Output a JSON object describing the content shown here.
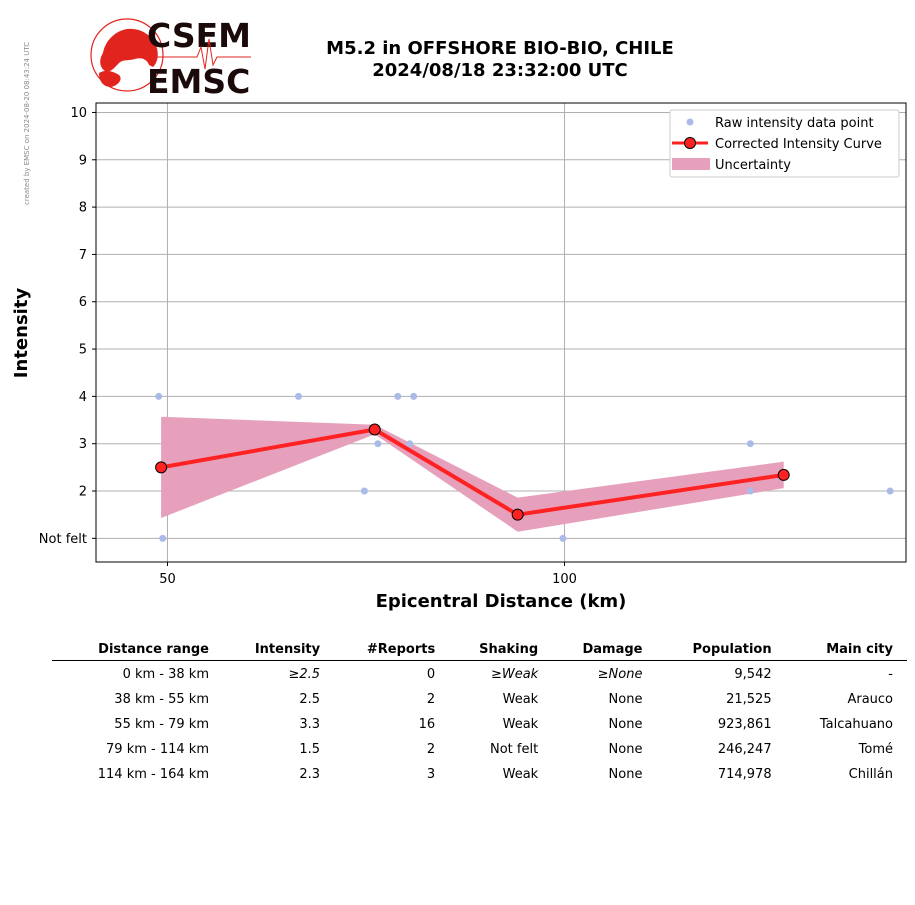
{
  "side_note": "created by EMSC on 2024-08-20 08:43:24 UTC",
  "logo": {
    "top": "CSEM",
    "bottom": "EMSC"
  },
  "title_line1": "M5.2 in OFFSHORE BIO-BIO, CHILE",
  "title_line2": "2024/08/18 23:32:00 UTC",
  "colors": {
    "raw_points": "#aabbe8",
    "curve": "#ff2222",
    "uncertainty": "#e6a0bc",
    "grid": "#b0b0b0",
    "logo_red": "#e2241f"
  },
  "chart_data": {
    "type": "line",
    "title": "M5.2 in OFFSHORE BIO-BIO, CHILE 2024/08/18 23:32:00 UTC",
    "xlabel": "Epicentral Distance (km)",
    "ylabel": "Intensity",
    "xlim": [
      41,
      143
    ],
    "ylim": [
      0.5,
      10.2
    ],
    "xticks": [
      50,
      100
    ],
    "yticks": [
      {
        "value": 1,
        "label": "Not felt"
      },
      {
        "value": 2,
        "label": "2"
      },
      {
        "value": 3,
        "label": "3"
      },
      {
        "value": 4,
        "label": "4"
      },
      {
        "value": 5,
        "label": "5"
      },
      {
        "value": 6,
        "label": "6"
      },
      {
        "value": 7,
        "label": "7"
      },
      {
        "value": 8,
        "label": "8"
      },
      {
        "value": 9,
        "label": "9"
      },
      {
        "value": 10,
        "label": "10"
      }
    ],
    "grid": true,
    "legend_position": "top-right",
    "legend": [
      "Raw intensity data point",
      "Corrected Intensity Curve",
      "Uncertainty"
    ],
    "series": [
      {
        "name": "Raw intensity data point",
        "type": "scatter",
        "points": [
          [
            48.9,
            4
          ],
          [
            49.4,
            1
          ],
          [
            66.5,
            4
          ],
          [
            74.8,
            2
          ],
          [
            76.5,
            3
          ],
          [
            79,
            4
          ],
          [
            80.5,
            3
          ],
          [
            81,
            4
          ],
          [
            99.8,
            1
          ],
          [
            123.4,
            3
          ],
          [
            123.4,
            2
          ],
          [
            141,
            2
          ]
        ]
      },
      {
        "name": "Corrected Intensity Curve",
        "type": "line",
        "points": [
          [
            49.2,
            2.5
          ],
          [
            76.1,
            3.3
          ],
          [
            94.1,
            1.5
          ],
          [
            127.6,
            2.34
          ]
        ]
      },
      {
        "name": "Uncertainty",
        "type": "area",
        "upper": [
          [
            49.2,
            3.57
          ],
          [
            76.1,
            3.4
          ],
          [
            94.1,
            1.86
          ],
          [
            127.6,
            2.62
          ]
        ],
        "lower": [
          [
            49.2,
            1.43
          ],
          [
            76.1,
            3.2
          ],
          [
            94.1,
            1.14
          ],
          [
            127.6,
            2.06
          ]
        ]
      }
    ]
  },
  "table": {
    "headers": [
      "Distance range",
      "Intensity",
      "#Reports",
      "Shaking",
      "Damage",
      "Population",
      "Main city"
    ],
    "rows": [
      {
        "range": "  0 km -   38 km",
        "intensity": "≥2.5",
        "reports": "0",
        "shaking": "≥Weak",
        "damage": "≥None",
        "population": "9,542",
        "city": "-"
      },
      {
        "range": " 38 km -   55 km",
        "intensity": "2.5",
        "reports": "2",
        "shaking": "Weak",
        "damage": "None",
        "population": "21,525",
        "city": "Arauco"
      },
      {
        "range": " 55 km -   79 km",
        "intensity": "3.3",
        "reports": "16",
        "shaking": "Weak",
        "damage": "None",
        "population": "923,861",
        "city": "Talcahuano"
      },
      {
        "range": " 79 km -  114 km",
        "intensity": "1.5",
        "reports": "2",
        "shaking": "Not felt",
        "damage": "None",
        "population": "246,247",
        "city": "Tomé"
      },
      {
        "range": "114 km -  164 km",
        "intensity": "2.3",
        "reports": "3",
        "shaking": "Weak",
        "damage": "None",
        "population": "714,978",
        "city": "Chillán"
      }
    ]
  }
}
